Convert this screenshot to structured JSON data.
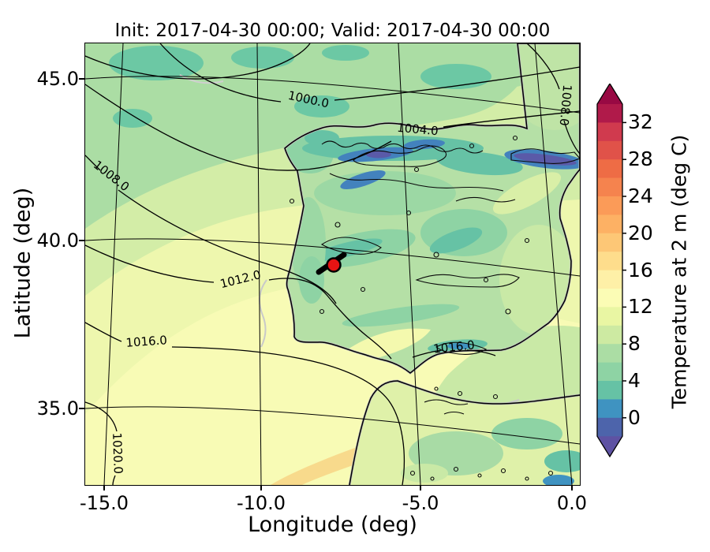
{
  "figure": {
    "title": "Init: 2017-04-30 00:00; Valid: 2017-04-30 00:00"
  },
  "axes": {
    "xlabel": "Longitude (deg)",
    "ylabel": "Latitude (deg)",
    "x_ticks": [
      "-15.0",
      "-10.0",
      "-5.0",
      "0.0"
    ],
    "y_ticks": [
      "45.0",
      "40.0",
      "35.0"
    ]
  },
  "colorbar": {
    "label": "Temperature at 2 m (deg C)",
    "ticks": [
      "32",
      "28",
      "24",
      "20",
      "16",
      "12",
      "8",
      "4",
      "0"
    ],
    "arrow_top_color": "#980943",
    "arrow_bottom_color": "#5e52a3",
    "segment_colors_top_to_bottom": [
      "#b01a4a",
      "#d03a4e",
      "#e05249",
      "#ee6c45",
      "#f5834e",
      "#fb9b58",
      "#fdb164",
      "#fdc776",
      "#fedd8c",
      "#fef0a7",
      "#fbfcb5",
      "#e9f6a3",
      "#cdeaa2",
      "#abdda4",
      "#8ed3a4",
      "#66c2a5",
      "#3f93c1",
      "#4d64ab"
    ]
  },
  "map": {
    "isobar_labels": [
      "1000.0",
      "1004.0",
      "1008.0",
      "1008.0",
      "1012.0",
      "1016.0",
      "1016.0",
      "1020.0"
    ],
    "marker": {
      "color": "#e81313",
      "lon": -7.8,
      "lat": 39.3
    }
  },
  "chart_data": {
    "type": "heatmap",
    "subtype": "filled-contour-weather-map",
    "title": "Init: 2017-04-30 00:00; Valid: 2017-04-30 00:00",
    "xlabel": "Longitude (deg)",
    "ylabel": "Latitude (deg)",
    "xlim": [
      -15.6,
      0.2
    ],
    "ylim": [
      32.6,
      46.1
    ],
    "x_ticks": [
      -15.0,
      -10.0,
      -5.0,
      0.0
    ],
    "y_ticks": [
      45.0,
      40.0,
      35.0
    ],
    "grid": true,
    "region": "Iberian Peninsula, eastern North Atlantic, western Mediterranean, northern Morocco",
    "field": {
      "name": "Temperature at 2 m",
      "units": "deg C",
      "colormap": "Spectral reversed",
      "contour_fill_level_min": -2,
      "contour_fill_level_max": 34,
      "contour_fill_level_step": 2,
      "colorbar_ticks": [
        32,
        28,
        24,
        20,
        16,
        12,
        8,
        4,
        0
      ],
      "colorbar_extend": "both",
      "notable_values": {
        "atlantic_northwest_ocean_degC": 10,
        "southwest_ocean_degC": 15,
        "cantabrian_and_pyrenees_mountains_degC": 0,
        "central_iberia_degC": 8,
        "guadalquivir_valley_degC": 14,
        "morocco_coastal_strip_degC": 18
      }
    },
    "isobars": {
      "units": "hPa",
      "labeled_levels": [
        1000.0,
        1004.0,
        1008.0,
        1012.0,
        1016.0,
        1020.0
      ],
      "pattern": "pressure decreasing from 1020 hPa (southwest, bottom-left) to below 1000 hPa (north, top)"
    },
    "marker": {
      "style": "red filled circle with black edge",
      "lon": -7.8,
      "lat": 39.3
    }
  }
}
